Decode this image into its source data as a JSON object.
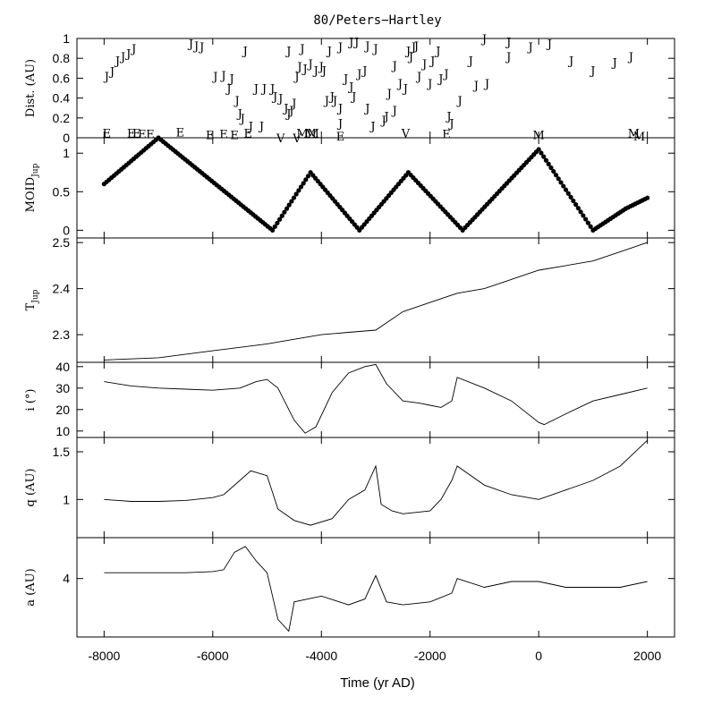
{
  "chart_data": {
    "title": "80/Peters−Hartley",
    "xlabel": "Time (yr AD)",
    "xlim": [
      -8500,
      2500
    ],
    "x_ticks": [
      "-8000",
      "-6000",
      "-4000",
      "-2000",
      "0",
      "2000"
    ],
    "panels": [
      {
        "id": "dist",
        "type": "scatter",
        "ylabel": "Dist. (AU)",
        "ylim": [
          0,
          1
        ],
        "y_ticks": [
          "0",
          "0.2",
          "0.4",
          "0.6",
          "0.8",
          "1"
        ],
        "encounters": [
          {
            "label": "J",
            "x": -7950,
            "y": 0.62
          },
          {
            "label": "J",
            "x": -7850,
            "y": 0.67
          },
          {
            "label": "J",
            "x": -7750,
            "y": 0.78
          },
          {
            "label": "J",
            "x": -7650,
            "y": 0.82
          },
          {
            "label": "J",
            "x": -7550,
            "y": 0.85
          },
          {
            "label": "J",
            "x": -7450,
            "y": 0.9
          },
          {
            "label": "J",
            "x": -6400,
            "y": 0.95
          },
          {
            "label": "J",
            "x": -6300,
            "y": 0.93
          },
          {
            "label": "J",
            "x": -6200,
            "y": 0.92
          },
          {
            "label": "J",
            "x": -5950,
            "y": 0.62
          },
          {
            "label": "J",
            "x": -5800,
            "y": 0.63
          },
          {
            "label": "J",
            "x": -5700,
            "y": 0.5
          },
          {
            "label": "J",
            "x": -5650,
            "y": 0.6
          },
          {
            "label": "J",
            "x": -5550,
            "y": 0.38
          },
          {
            "label": "J",
            "x": -5500,
            "y": 0.25
          },
          {
            "label": "J",
            "x": -5400,
            "y": 0.88
          },
          {
            "label": "J",
            "x": -5450,
            "y": 0.2
          },
          {
            "label": "J",
            "x": -5300,
            "y": 0.12
          },
          {
            "label": "J",
            "x": -5100,
            "y": 0.12
          },
          {
            "label": "J",
            "x": -5200,
            "y": 0.5
          },
          {
            "label": "J",
            "x": -5050,
            "y": 0.5
          },
          {
            "label": "J",
            "x": -4900,
            "y": 0.5
          },
          {
            "label": "J",
            "x": -4850,
            "y": 0.42
          },
          {
            "label": "J",
            "x": -4750,
            "y": 0.4
          },
          {
            "label": "J",
            "x": -4650,
            "y": 0.3
          },
          {
            "label": "J",
            "x": -4600,
            "y": 0.25
          },
          {
            "label": "J",
            "x": -4550,
            "y": 0.28
          },
          {
            "label": "J",
            "x": -4500,
            "y": 0.35
          },
          {
            "label": "J",
            "x": -4450,
            "y": 0.62
          },
          {
            "label": "J",
            "x": -4400,
            "y": 0.72
          },
          {
            "label": "J",
            "x": -4300,
            "y": 0.7
          },
          {
            "label": "J",
            "x": -4200,
            "y": 0.75
          },
          {
            "label": "J",
            "x": -4100,
            "y": 0.68
          },
          {
            "label": "J",
            "x": -4000,
            "y": 0.72
          },
          {
            "label": "J",
            "x": -3950,
            "y": 0.68
          },
          {
            "label": "J",
            "x": -4600,
            "y": 0.88
          },
          {
            "label": "J",
            "x": -4350,
            "y": 0.9
          },
          {
            "label": "J",
            "x": -3850,
            "y": 0.88
          },
          {
            "label": "J",
            "x": -3650,
            "y": 0.92
          },
          {
            "label": "J",
            "x": -3450,
            "y": 0.97
          },
          {
            "label": "J",
            "x": -3350,
            "y": 0.97
          },
          {
            "label": "J",
            "x": -3150,
            "y": 0.93
          },
          {
            "label": "J",
            "x": -3000,
            "y": 0.9
          },
          {
            "label": "J",
            "x": -3900,
            "y": 0.38
          },
          {
            "label": "J",
            "x": -3800,
            "y": 0.42
          },
          {
            "label": "J",
            "x": -3750,
            "y": 0.38
          },
          {
            "label": "J",
            "x": -3650,
            "y": 0.3
          },
          {
            "label": "J",
            "x": -3550,
            "y": 0.6
          },
          {
            "label": "J",
            "x": -3450,
            "y": 0.52
          },
          {
            "label": "J",
            "x": -3400,
            "y": 0.42
          },
          {
            "label": "J",
            "x": -3300,
            "y": 0.65
          },
          {
            "label": "J",
            "x": -3200,
            "y": 0.68
          },
          {
            "label": "J",
            "x": -3150,
            "y": 0.3
          },
          {
            "label": "J",
            "x": -3650,
            "y": 0.15
          },
          {
            "label": "J",
            "x": -3050,
            "y": 0.12
          },
          {
            "label": "J",
            "x": -2850,
            "y": 0.18
          },
          {
            "label": "J",
            "x": -2800,
            "y": 0.22
          },
          {
            "label": "J",
            "x": -2750,
            "y": 0.45
          },
          {
            "label": "J",
            "x": -2650,
            "y": 0.28
          },
          {
            "label": "J",
            "x": -2650,
            "y": 0.73
          },
          {
            "label": "J",
            "x": -2550,
            "y": 0.55
          },
          {
            "label": "J",
            "x": -2450,
            "y": 0.5
          },
          {
            "label": "J",
            "x": -2400,
            "y": 0.88
          },
          {
            "label": "J",
            "x": -2350,
            "y": 0.82
          },
          {
            "label": "J",
            "x": -2300,
            "y": 0.92
          },
          {
            "label": "J",
            "x": -2250,
            "y": 0.93
          },
          {
            "label": "J",
            "x": -2200,
            "y": 0.62
          },
          {
            "label": "J",
            "x": -2100,
            "y": 0.75
          },
          {
            "label": "J",
            "x": -2000,
            "y": 0.55
          },
          {
            "label": "J",
            "x": -1950,
            "y": 0.78
          },
          {
            "label": "J",
            "x": -1850,
            "y": 0.88
          },
          {
            "label": "J",
            "x": -1800,
            "y": 0.6
          },
          {
            "label": "J",
            "x": -1700,
            "y": 0.65
          },
          {
            "label": "J",
            "x": -1650,
            "y": 0.22
          },
          {
            "label": "J",
            "x": -1600,
            "y": 0.15
          },
          {
            "label": "J",
            "x": -1450,
            "y": 0.38
          },
          {
            "label": "J",
            "x": -1250,
            "y": 0.78
          },
          {
            "label": "J",
            "x": -1150,
            "y": 0.53
          },
          {
            "label": "J",
            "x": -950,
            "y": 0.55
          },
          {
            "label": "J",
            "x": -1000,
            "y": 1.0
          },
          {
            "label": "J",
            "x": -550,
            "y": 0.97
          },
          {
            "label": "J",
            "x": -550,
            "y": 0.82
          },
          {
            "label": "J",
            "x": -150,
            "y": 0.92
          },
          {
            "label": "J",
            "x": 200,
            "y": 0.95
          },
          {
            "label": "J",
            "x": 600,
            "y": 0.78
          },
          {
            "label": "J",
            "x": 1000,
            "y": 0.68
          },
          {
            "label": "J",
            "x": 1400,
            "y": 0.76
          },
          {
            "label": "J",
            "x": 1700,
            "y": 0.82
          }
        ],
        "encounters_low": [
          {
            "label": "E",
            "x": -7950,
            "y": 0.05
          },
          {
            "label": "E",
            "x": -7500,
            "y": 0.05
          },
          {
            "label": "E",
            "x": -7400,
            "y": 0.05
          },
          {
            "label": "E",
            "x": -7300,
            "y": 0.04
          },
          {
            "label": "E",
            "x": -7150,
            "y": 0.04
          },
          {
            "label": "E",
            "x": -6600,
            "y": 0.06
          },
          {
            "label": "E",
            "x": -6050,
            "y": 0.03
          },
          {
            "label": "E",
            "x": -5800,
            "y": 0.04
          },
          {
            "label": "E",
            "x": -5600,
            "y": 0.03
          },
          {
            "label": "E",
            "x": -5350,
            "y": 0.05
          },
          {
            "label": "V",
            "x": -4750,
            "y": 0.0
          },
          {
            "label": "V",
            "x": -4450,
            "y": 0.0
          },
          {
            "label": "M",
            "x": -4350,
            "y": 0.05
          },
          {
            "label": "M",
            "x": -4200,
            "y": 0.05
          },
          {
            "label": "M",
            "x": -4150,
            "y": 0.05
          },
          {
            "label": "E",
            "x": -3650,
            "y": 0.02
          },
          {
            "label": "V",
            "x": -2450,
            "y": 0.05
          },
          {
            "label": "E",
            "x": -1700,
            "y": 0.04
          },
          {
            "label": "M",
            "x": 0,
            "y": 0.03
          },
          {
            "label": "M",
            "x": 1750,
            "y": 0.05
          },
          {
            "label": "M",
            "x": 1850,
            "y": 0.02
          }
        ]
      },
      {
        "id": "moid",
        "type": "scatter",
        "ylabel": "MOID",
        "ylabel_sub": "Jup",
        "ylim": [
          -0.1,
          1.2
        ],
        "y_ticks": [
          "0",
          "0.5",
          "1"
        ],
        "points_x": [
          -8000,
          -7000,
          -4900,
          -4200,
          -3300,
          -2400,
          -1400,
          0,
          1000,
          1600,
          2000
        ],
        "points_y": [
          0.6,
          1.2,
          0.0,
          0.75,
          0.0,
          0.75,
          0.0,
          1.05,
          0.0,
          0.28,
          0.42
        ]
      },
      {
        "id": "tjup",
        "type": "line",
        "ylabel": "T",
        "ylabel_sub": "Jup",
        "ylim": [
          2.24,
          2.51
        ],
        "y_ticks": [
          "2.3",
          "2.4",
          "2.5"
        ],
        "x": [
          -8000,
          -7000,
          -6000,
          -5000,
          -4000,
          -3500,
          -3000,
          -2500,
          -2000,
          -1500,
          -1000,
          -500,
          0,
          500,
          1000,
          1500,
          2000
        ],
        "y": [
          2.245,
          2.25,
          2.265,
          2.28,
          2.3,
          2.305,
          2.31,
          2.35,
          2.37,
          2.39,
          2.4,
          2.42,
          2.44,
          2.45,
          2.46,
          2.48,
          2.5
        ]
      },
      {
        "id": "incl",
        "type": "line",
        "ylabel": "i (°)",
        "ylim": [
          7,
          42
        ],
        "y_ticks": [
          "10",
          "20",
          "30",
          "40"
        ],
        "x": [
          -8000,
          -7500,
          -7000,
          -6500,
          -6000,
          -5500,
          -5200,
          -5000,
          -4800,
          -4500,
          -4300,
          -4100,
          -3800,
          -3500,
          -3200,
          -3000,
          -2800,
          -2500,
          -2200,
          -2000,
          -1800,
          -1600,
          -1500,
          -1000,
          -500,
          0,
          100,
          500,
          1000,
          1500,
          2000
        ],
        "y": [
          33,
          31,
          30,
          29.5,
          29,
          30,
          33,
          34,
          30,
          15,
          9,
          12,
          28,
          37,
          40,
          41,
          32,
          24,
          23,
          22,
          21,
          24,
          35,
          30,
          24,
          14,
          13,
          18,
          24,
          27,
          30
        ]
      },
      {
        "id": "q",
        "type": "line",
        "ylabel": "q (AU)",
        "ylim": [
          0.6,
          1.65
        ],
        "y_ticks": [
          "1",
          "1.5"
        ],
        "x": [
          -8000,
          -7500,
          -7000,
          -6500,
          -6000,
          -5800,
          -5500,
          -5300,
          -5000,
          -4800,
          -4500,
          -4200,
          -3800,
          -3500,
          -3200,
          -3000,
          -2900,
          -2700,
          -2500,
          -2000,
          -1800,
          -1600,
          -1500,
          -1000,
          -500,
          0,
          500,
          1000,
          1500,
          2000
        ],
        "y": [
          1.0,
          0.98,
          0.98,
          0.99,
          1.02,
          1.05,
          1.2,
          1.3,
          1.25,
          0.9,
          0.78,
          0.73,
          0.8,
          1.0,
          1.1,
          1.35,
          0.95,
          0.88,
          0.85,
          0.88,
          1.0,
          1.2,
          1.35,
          1.15,
          1.05,
          1.0,
          1.1,
          1.2,
          1.35,
          1.62
        ]
      },
      {
        "id": "a",
        "type": "line",
        "ylabel": "a (AU)",
        "ylim": [
          3.0,
          4.7
        ],
        "y_ticks": [
          "4"
        ],
        "x": [
          -8000,
          -7500,
          -7000,
          -6500,
          -6000,
          -5800,
          -5600,
          -5400,
          -5200,
          -5000,
          -4900,
          -4800,
          -4600,
          -4500,
          -4000,
          -3500,
          -3200,
          -3000,
          -2800,
          -2500,
          -2000,
          -1600,
          -1500,
          -1000,
          -500,
          0,
          500,
          1000,
          1500,
          2000
        ],
        "y": [
          4.1,
          4.1,
          4.1,
          4.1,
          4.12,
          4.15,
          4.45,
          4.55,
          4.3,
          4.1,
          3.7,
          3.3,
          3.1,
          3.6,
          3.7,
          3.55,
          3.65,
          4.05,
          3.6,
          3.55,
          3.6,
          3.75,
          4.0,
          3.85,
          3.95,
          3.95,
          3.85,
          3.85,
          3.85,
          3.95
        ]
      }
    ]
  }
}
